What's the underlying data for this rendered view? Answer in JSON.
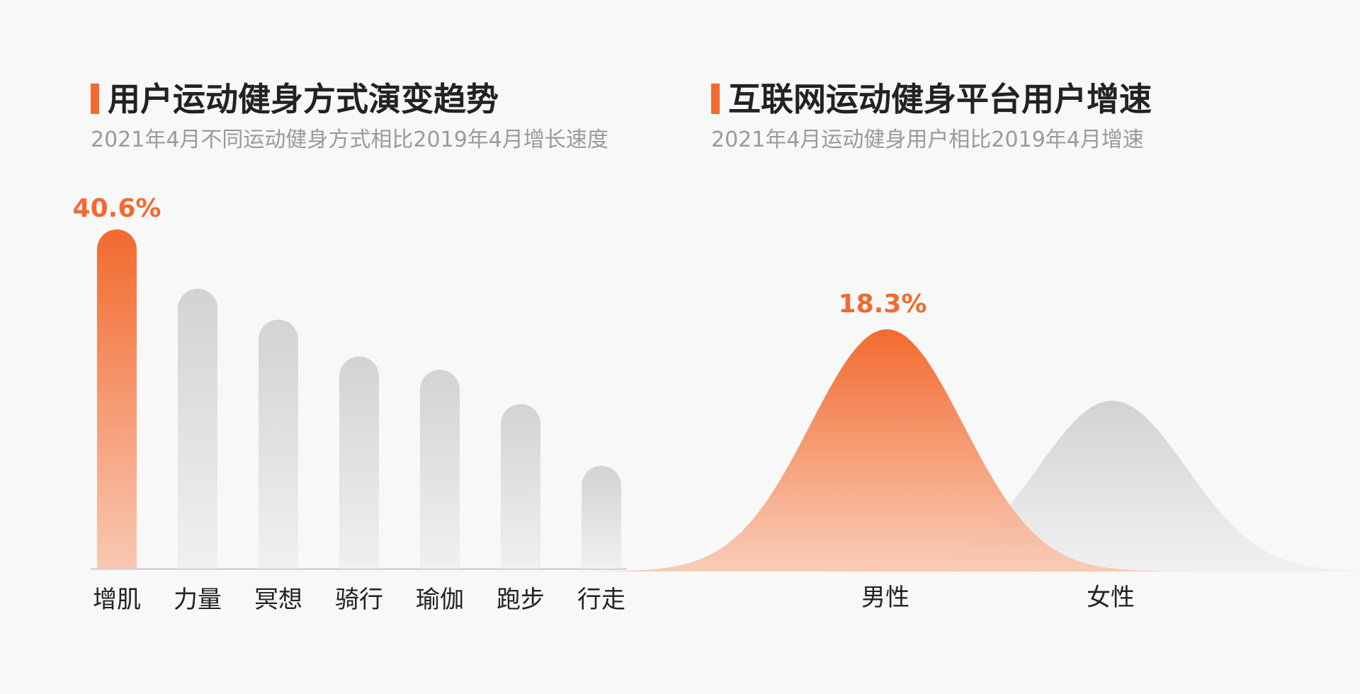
{
  "colors": {
    "accent": "#f26a2e",
    "accent_light": "#f9c8b2",
    "gray_top": "#d3d3d3",
    "gray_bottom": "#f0f0f0",
    "title": "#222222",
    "subtitle": "#9a9a9a",
    "background": "#f8f8f8"
  },
  "left_panel": {
    "title": "用户运动健身方式演变趋势",
    "subtitle": "2021年4月不同运动健身方式相比2019年4月增长速度"
  },
  "right_panel": {
    "title": "互联网运动健身平台用户增速",
    "subtitle": "2021年4月运动健身用户相比2019年4月增速"
  },
  "chart_data": [
    {
      "type": "bar",
      "categories": [
        "增肌",
        "力量",
        "冥想",
        "骑行",
        "瑜伽",
        "跑步",
        "行走"
      ],
      "values": [
        40.6,
        33.5,
        29.8,
        25.4,
        23.8,
        19.7,
        12.3
      ],
      "data_labels": [
        "40.6%",
        "",
        "",
        "",
        "",
        "",
        ""
      ],
      "highlight_index": 0,
      "ylim": [
        0,
        42
      ],
      "grid": false,
      "legend": "none"
    },
    {
      "type": "area",
      "categories": [
        "男性",
        "女性"
      ],
      "values": [
        18.3,
        12.9
      ],
      "data_labels": [
        "18.3%",
        ""
      ],
      "highlight_index": 0,
      "ylim": [
        0,
        19
      ],
      "grid": false,
      "legend": "none"
    }
  ]
}
